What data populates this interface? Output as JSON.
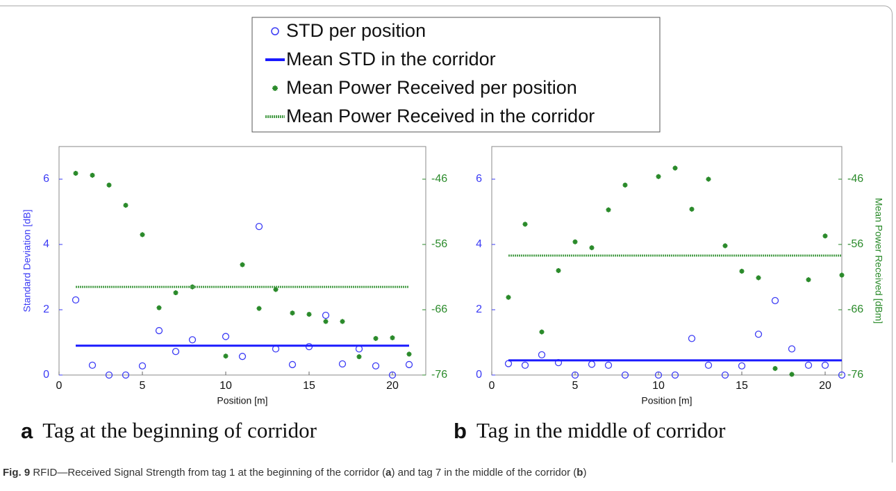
{
  "legend_names_from": "chart_data.0.series",
  "chart_data": [
    {
      "type": "scatter",
      "panel": "a",
      "subtitle": "Tag at the beginning of corridor",
      "xlabel": "Position [m]",
      "ylabel": "Standard Deviation [dB]",
      "xlim": [
        0,
        22
      ],
      "xticks": [
        0,
        5,
        10,
        15,
        20
      ],
      "ylim": [
        0,
        7
      ],
      "yticks": [
        0,
        2,
        4,
        6
      ],
      "y2lim": [
        -76,
        -41
      ],
      "y2ticks": [
        -76,
        -66,
        -56,
        -46
      ],
      "series": [
        {
          "name": "STD per position",
          "color": "#3b3bf5",
          "marker": "circle",
          "x": [
            1,
            2,
            3,
            4,
            5,
            6,
            7,
            8,
            10,
            11,
            12,
            13,
            14,
            15,
            16,
            17,
            18,
            19,
            20,
            21
          ],
          "values": [
            2.3,
            0.3,
            0,
            0,
            0.28,
            1.36,
            0.72,
            1.08,
            1.18,
            0.57,
            4.55,
            0.8,
            0.32,
            0.87,
            1.83,
            0.34,
            0.8,
            0.28,
            0,
            0.32
          ]
        },
        {
          "name": "Mean STD in the corridor",
          "color": "#1a1aff",
          "marker": "line",
          "style": "solid",
          "x": [
            1,
            21
          ],
          "values": [
            0.9,
            0.9
          ]
        },
        {
          "name": "Mean Power Received per position",
          "color": "#2a8a2a",
          "marker": "asterisk",
          "axis": "y2",
          "x": [
            1,
            2,
            3,
            4,
            5,
            6,
            7,
            8,
            10,
            11,
            12,
            13,
            14,
            15,
            16,
            17,
            18,
            19,
            20,
            21
          ],
          "values": [
            -45.1,
            -45.4,
            -46.9,
            -50,
            -54.5,
            -65.7,
            -63.4,
            -62.5,
            -73.1,
            -59.1,
            -65.8,
            -62.9,
            -66.5,
            -66.7,
            -67.8,
            -67.8,
            -73.2,
            -70.4,
            -70.3,
            -72.8
          ]
        },
        {
          "name": "Mean Power Received in the corridor",
          "color": "#4a9e4a",
          "marker": "line",
          "style": "dotted",
          "axis": "y2",
          "x": [
            1,
            21
          ],
          "values": [
            -62.5,
            -62.5
          ]
        }
      ]
    },
    {
      "type": "scatter",
      "panel": "b",
      "subtitle": "Tag in the middle of corridor",
      "xlabel": "Position [m]",
      "y2label": "Mean Power Received [dBm]",
      "xlim": [
        0,
        21
      ],
      "xticks": [
        0,
        5,
        10,
        15,
        20
      ],
      "ylim": [
        0,
        7
      ],
      "yticks": [
        0,
        2,
        4,
        6
      ],
      "y2lim": [
        -76,
        -41
      ],
      "y2ticks": [
        -76,
        -66,
        -56,
        -46
      ],
      "series": [
        {
          "name": "STD per position",
          "color": "#3b3bf5",
          "marker": "circle",
          "x": [
            1,
            2,
            3,
            4,
            5,
            6,
            7,
            8,
            10,
            11,
            12,
            13,
            14,
            15,
            16,
            17,
            18,
            19,
            20,
            21
          ],
          "values": [
            0.35,
            0.3,
            0.62,
            0.38,
            0,
            0.33,
            0.3,
            0,
            0,
            0,
            1.12,
            0.3,
            0,
            0.28,
            1.25,
            2.28,
            0.8,
            0.3,
            0.3,
            0
          ]
        },
        {
          "name": "Mean STD in the corridor",
          "color": "#1a1aff",
          "marker": "line",
          "style": "solid",
          "x": [
            1,
            21
          ],
          "values": [
            0.45,
            0.45
          ]
        },
        {
          "name": "Mean Power Received per position",
          "color": "#2a8a2a",
          "marker": "asterisk",
          "axis": "y2",
          "x": [
            1,
            2,
            3,
            4,
            5,
            6,
            7,
            8,
            10,
            11,
            12,
            13,
            14,
            15,
            16,
            17,
            18,
            19,
            20,
            21
          ],
          "values": [
            -64.1,
            -52.9,
            -69.4,
            -60,
            -55.6,
            -56.5,
            -50.7,
            -46.9,
            -45.6,
            -44.3,
            -50.6,
            -46,
            -56.2,
            -60.1,
            -61.1,
            -75,
            -75.9,
            -61.4,
            -54.7,
            -60.7
          ]
        },
        {
          "name": "Mean Power Received in the corridor",
          "color": "#4a9e4a",
          "marker": "line",
          "style": "dotted",
          "axis": "y2",
          "x": [
            1,
            21
          ],
          "values": [
            -57.7,
            -57.7
          ]
        }
      ]
    }
  ],
  "caption": [
    "Fig. 9",
    " RFID—Received Signal Strength from tag 1 at the beginning of the corridor (",
    "a",
    ") and tag 7 in the middle of the corridor (",
    "b",
    ")"
  ]
}
